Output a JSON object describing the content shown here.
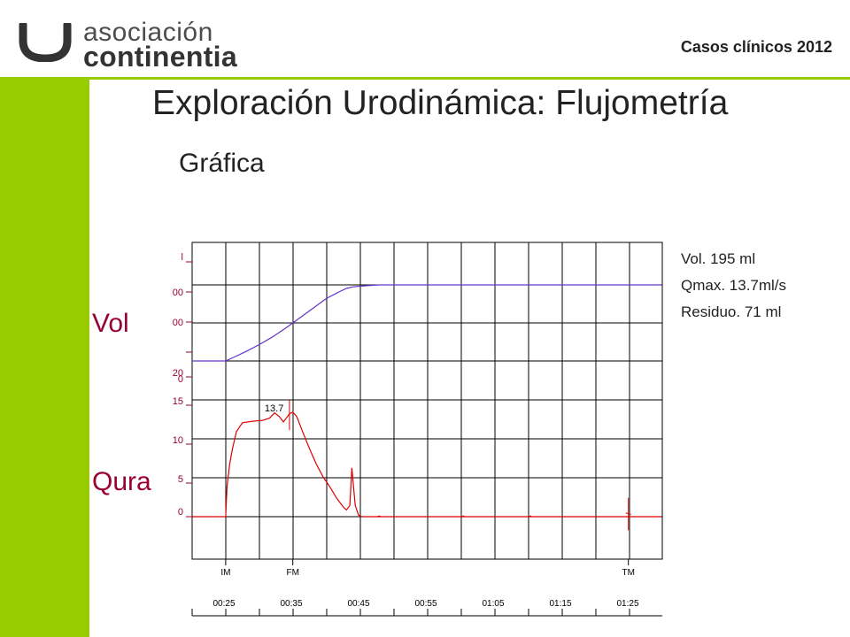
{
  "logo": {
    "line1": "asociación",
    "line2": "continentia"
  },
  "header": {
    "right_text": "Casos clínicos 2012"
  },
  "title": "Exploración Urodinámica: Flujometría",
  "subtitle": "Gráfica",
  "side_labels": {
    "vol": "Vol",
    "qura": "Qura"
  },
  "stats": [
    {
      "text": "Vol. 195 ml"
    },
    {
      "text": "Qmax. 13.7ml/s"
    },
    {
      "text": "Residuo. 71 ml"
    }
  ],
  "colors": {
    "accent_green": "#99cc00",
    "label_maroon": "#990033",
    "volume_line": "#6633cc",
    "flow_line": "#dd0000"
  },
  "chart_data": {
    "type": "line",
    "x_time_ticks": [
      "00:25",
      "00:35",
      "00:45",
      "00:55",
      "01:05",
      "01:15",
      "01:25"
    ],
    "event_markers": [
      {
        "label": "IM",
        "t": 25
      },
      {
        "label": "FM",
        "t": 35
      },
      {
        "label": "TM",
        "t": 85
      }
    ],
    "volume_panel": {
      "tick_labels": [
        "l",
        "00",
        "00",
        "0"
      ],
      "series": {
        "name": "",
        "points": [
          [
            20,
            0
          ],
          [
            25,
            0
          ],
          [
            26,
            8
          ],
          [
            28,
            24
          ],
          [
            30,
            42
          ],
          [
            32,
            62
          ],
          [
            34,
            85
          ],
          [
            36,
            110
          ],
          [
            38,
            135
          ],
          [
            40,
            160
          ],
          [
            42,
            178
          ],
          [
            43,
            186
          ],
          [
            44,
            190
          ],
          [
            46,
            193
          ],
          [
            48,
            195
          ],
          [
            90,
            195
          ]
        ]
      }
    },
    "flow_panel": {
      "tick_labels": [
        "20",
        "15",
        "10",
        "5",
        "0"
      ],
      "ylim": [
        0,
        20
      ],
      "peak_label": "13.7",
      "peak_t": 34.5,
      "series": {
        "name": "",
        "points": [
          [
            20,
            0
          ],
          [
            25,
            0
          ],
          [
            25.2,
            4
          ],
          [
            25.6,
            7
          ],
          [
            26,
            9
          ],
          [
            26.6,
            11.3
          ],
          [
            27.5,
            12.5
          ],
          [
            29,
            12.7
          ],
          [
            30.5,
            12.8
          ],
          [
            31.5,
            13.1
          ],
          [
            32.3,
            13.8
          ],
          [
            33,
            13.3
          ],
          [
            33.6,
            12.6
          ],
          [
            34.1,
            13.2
          ],
          [
            34.5,
            13.7
          ],
          [
            35,
            13.9
          ],
          [
            35.6,
            13.3
          ],
          [
            36.5,
            11.2
          ],
          [
            37.5,
            9.0
          ],
          [
            38.5,
            7.0
          ],
          [
            39.5,
            5.3
          ],
          [
            40.5,
            4.0
          ],
          [
            41.5,
            2.5
          ],
          [
            42.5,
            1.3
          ],
          [
            43,
            0.9
          ],
          [
            43.5,
            1.5
          ],
          [
            43.8,
            6.5
          ],
          [
            44,
            4.5
          ],
          [
            44.3,
            1.5
          ],
          [
            44.8,
            0.2
          ],
          [
            45.3,
            0
          ],
          [
            90,
            0
          ]
        ]
      }
    }
  }
}
